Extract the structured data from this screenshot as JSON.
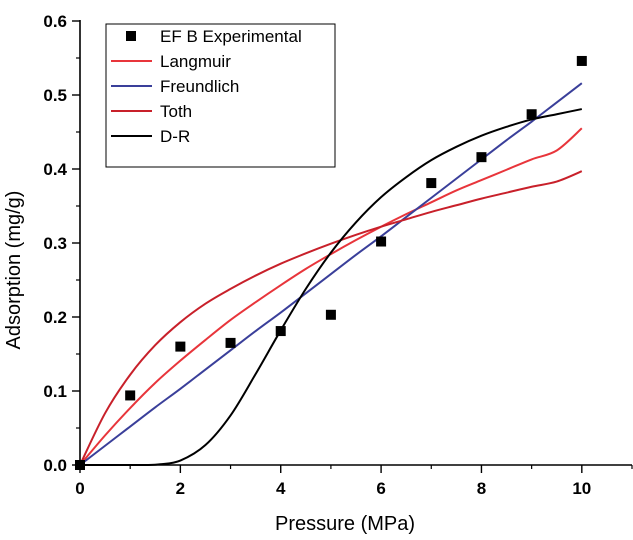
{
  "chart_data": {
    "type": "scatter",
    "title": "",
    "xlabel": "Pressure (MPa)",
    "ylabel": "Adsorption (mg/g)",
    "xlim": [
      0,
      11
    ],
    "ylim": [
      0,
      0.6
    ],
    "x_ticks": [
      0,
      2,
      4,
      6,
      8,
      10
    ],
    "x_tick_labels": [
      "0",
      "2",
      "4",
      "6",
      "8",
      "10"
    ],
    "y_ticks": [
      0.0,
      0.1,
      0.2,
      0.3,
      0.4,
      0.5,
      0.6
    ],
    "y_tick_labels": [
      "0.0",
      "0.1",
      "0.2",
      "0.3",
      "0.4",
      "0.5",
      "0.6"
    ],
    "grid": false,
    "legend_position": "top-left",
    "series": [
      {
        "name": "EF B Experimental",
        "kind": "scatter",
        "marker": "square",
        "color": "#000000",
        "x": [
          0,
          1,
          2,
          3,
          4,
          5,
          6,
          7,
          8,
          9,
          10
        ],
        "y": [
          0.0,
          0.094,
          0.16,
          0.165,
          0.181,
          0.203,
          0.302,
          0.381,
          0.416,
          0.474,
          0.546
        ]
      },
      {
        "name": "Langmuir",
        "kind": "line",
        "color": "#e8353b",
        "x": [
          0,
          0.5,
          1,
          1.5,
          2,
          2.5,
          3,
          3.5,
          4,
          4.5,
          5,
          5.5,
          6,
          6.5,
          7,
          7.5,
          8,
          8.5,
          9,
          9.5,
          10
        ],
        "y": [
          0.0,
          0.04,
          0.077,
          0.111,
          0.141,
          0.169,
          0.196,
          0.22,
          0.243,
          0.265,
          0.285,
          0.304,
          0.322,
          0.339,
          0.355,
          0.371,
          0.385,
          0.399,
          0.413,
          0.425,
          0.455
        ]
      },
      {
        "name": "Freundlich",
        "kind": "line",
        "color": "#3a3f9a",
        "x": [
          0,
          0.5,
          1,
          1.5,
          2,
          2.5,
          3,
          3.5,
          4,
          4.5,
          5,
          5.5,
          6,
          6.5,
          7,
          7.5,
          8,
          8.5,
          9,
          9.5,
          10
        ],
        "y": [
          0.0,
          0.026,
          0.052,
          0.078,
          0.103,
          0.129,
          0.155,
          0.181,
          0.206,
          0.232,
          0.258,
          0.284,
          0.309,
          0.335,
          0.361,
          0.387,
          0.413,
          0.439,
          0.464,
          0.49,
          0.516
        ]
      },
      {
        "name": "Toth",
        "kind": "line",
        "color": "#c8202a",
        "x": [
          0,
          0.5,
          1,
          1.5,
          2,
          2.5,
          3,
          3.5,
          4,
          4.5,
          5,
          5.5,
          6,
          6.5,
          7,
          7.5,
          8,
          8.5,
          9,
          9.5,
          10
        ],
        "y": [
          0.0,
          0.07,
          0.122,
          0.162,
          0.193,
          0.218,
          0.238,
          0.256,
          0.272,
          0.286,
          0.299,
          0.311,
          0.322,
          0.332,
          0.342,
          0.351,
          0.36,
          0.368,
          0.376,
          0.383,
          0.397
        ]
      },
      {
        "name": "D-R",
        "kind": "line",
        "color": "#000000",
        "x": [
          0,
          0.5,
          1,
          1.3,
          1.6,
          2,
          2.5,
          3,
          3.5,
          4,
          4.5,
          5,
          5.5,
          6,
          6.5,
          7,
          7.5,
          8,
          8.5,
          9,
          9.5,
          10
        ],
        "y": [
          0.0,
          0.0,
          0.0,
          0.0,
          0.001,
          0.006,
          0.027,
          0.067,
          0.123,
          0.182,
          0.238,
          0.287,
          0.328,
          0.362,
          0.389,
          0.412,
          0.43,
          0.445,
          0.457,
          0.467,
          0.474,
          0.481
        ]
      }
    ]
  }
}
